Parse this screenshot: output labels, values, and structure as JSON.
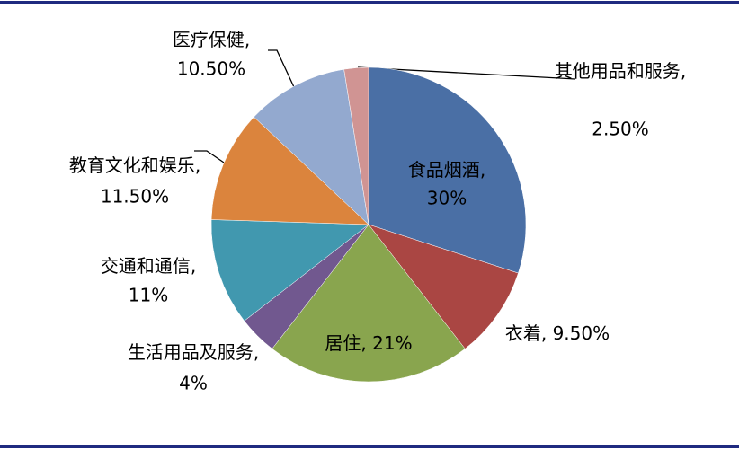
{
  "chart_data": {
    "type": "pie",
    "categories": [
      "食品烟酒",
      "衣着",
      "居住",
      "生活用品及服务",
      "交通和通信",
      "教育文化和娱乐",
      "医疗保健",
      "其他用品和服务"
    ],
    "values": [
      30,
      9.5,
      21,
      4,
      11,
      11.5,
      10.5,
      2.5
    ],
    "value_labels": [
      "30%",
      "9.50%",
      "21%",
      "4%",
      "11%",
      "11.50%",
      "10.50%",
      "2.50%"
    ],
    "colors": [
      "#4a6fa5",
      "#aa4643",
      "#89a54e",
      "#71588f",
      "#4198af",
      "#db843d",
      "#93a9cf",
      "#d09493"
    ]
  }
}
